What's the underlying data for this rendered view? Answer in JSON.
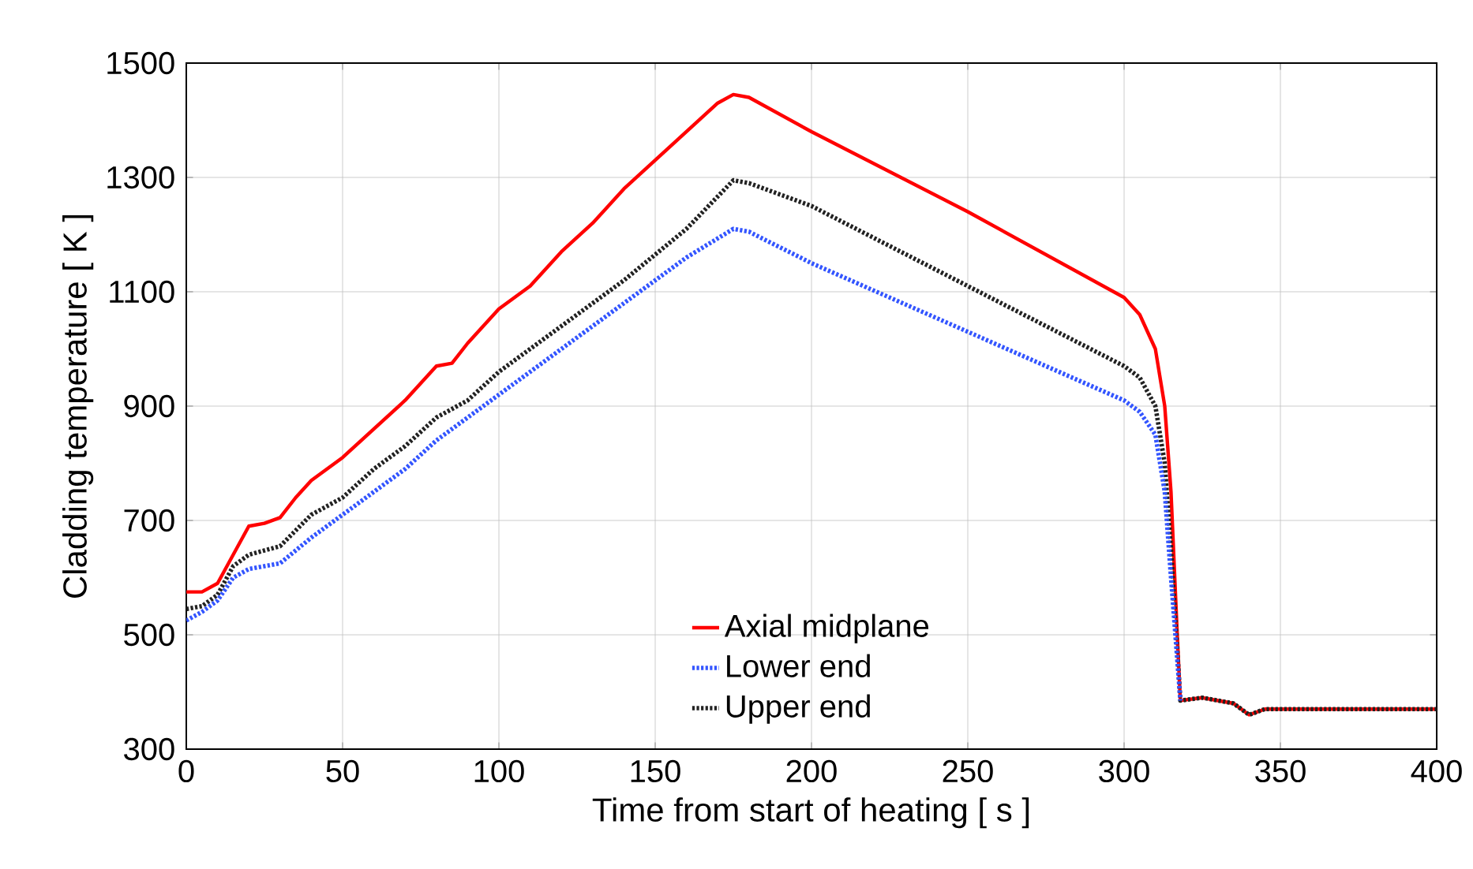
{
  "chart_data": {
    "type": "line",
    "xlabel": "Time from start of heating [ s ]",
    "ylabel": "Cladding temperature [ K ]",
    "xlim": [
      0,
      400
    ],
    "ylim": [
      300,
      1500
    ],
    "xticks": [
      0,
      50,
      100,
      150,
      200,
      250,
      300,
      350,
      400
    ],
    "yticks": [
      300,
      500,
      700,
      900,
      1100,
      1300,
      1500
    ],
    "grid": true,
    "legend": "bottom",
    "marker": "none",
    "series": [
      {
        "name": "Axial midplane",
        "color": "#ff0000",
        "line_style": "solid",
        "x": [
          0,
          5,
          10,
          15,
          20,
          25,
          30,
          35,
          40,
          50,
          60,
          70,
          80,
          85,
          90,
          100,
          110,
          120,
          130,
          140,
          150,
          160,
          170,
          175,
          180,
          190,
          200,
          250,
          300,
          305,
          310,
          313,
          315,
          317,
          318,
          325,
          335,
          340,
          345,
          400
        ],
        "values": [
          575,
          575,
          590,
          640,
          690,
          695,
          705,
          740,
          770,
          810,
          860,
          910,
          970,
          975,
          1010,
          1070,
          1110,
          1170,
          1220,
          1280,
          1330,
          1380,
          1430,
          1445,
          1440,
          1410,
          1380,
          1240,
          1090,
          1060,
          1000,
          900,
          750,
          500,
          385,
          390,
          380,
          360,
          370,
          370
        ]
      },
      {
        "name": "Lower end",
        "color": "#3355ff",
        "line_style": "dotted",
        "x": [
          0,
          5,
          10,
          15,
          20,
          30,
          40,
          50,
          60,
          70,
          80,
          90,
          100,
          120,
          140,
          160,
          175,
          180,
          200,
          250,
          300,
          305,
          310,
          313,
          315,
          318
        ],
        "values": [
          525,
          540,
          560,
          600,
          615,
          625,
          670,
          710,
          750,
          790,
          840,
          880,
          920,
          1000,
          1080,
          1160,
          1210,
          1205,
          1150,
          1030,
          910,
          890,
          850,
          750,
          600,
          385
        ]
      },
      {
        "name": "Upper end",
        "color": "#222222",
        "line_style": "dotted",
        "x": [
          0,
          5,
          10,
          15,
          20,
          30,
          40,
          50,
          60,
          70,
          80,
          90,
          100,
          120,
          140,
          160,
          175,
          180,
          200,
          250,
          300,
          305,
          310,
          313,
          315,
          318,
          325,
          335,
          340,
          345,
          400
        ],
        "values": [
          545,
          550,
          570,
          620,
          640,
          655,
          710,
          740,
          790,
          830,
          880,
          910,
          960,
          1040,
          1120,
          1210,
          1295,
          1290,
          1250,
          1110,
          970,
          950,
          900,
          800,
          650,
          385,
          390,
          380,
          360,
          370,
          370
        ]
      }
    ]
  }
}
